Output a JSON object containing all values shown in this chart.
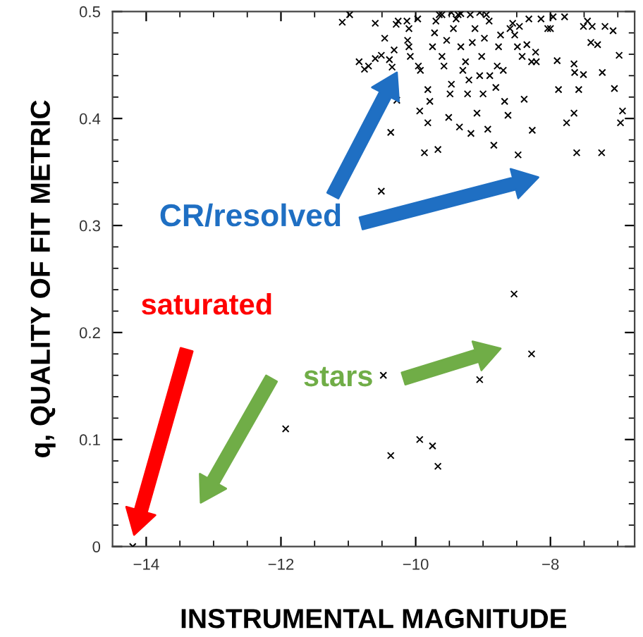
{
  "chart_data": {
    "type": "scatter",
    "xlabel": "INSTRUMENTAL MAGNITUDE",
    "ylabel": "q, QUALITY OF FIT METRIC",
    "annotations": [
      "CR/resolved",
      "saturated",
      "stars"
    ],
    "xlim": [
      -14.5,
      -6.75
    ],
    "ylim": [
      0,
      0.5
    ],
    "xticks": [
      {
        "value": -14,
        "label": "−14"
      },
      {
        "value": -13.5,
        "label": null
      },
      {
        "value": -13,
        "label": null
      },
      {
        "value": -12.5,
        "label": null
      },
      {
        "value": -12,
        "label": "−12"
      },
      {
        "value": -11.5,
        "label": null
      },
      {
        "value": -11,
        "label": null
      },
      {
        "value": -10.5,
        "label": null
      },
      {
        "value": -10,
        "label": "−10"
      },
      {
        "value": -9.5,
        "label": null
      },
      {
        "value": -9,
        "label": null
      },
      {
        "value": -8.5,
        "label": null
      },
      {
        "value": -8,
        "label": "−8"
      },
      {
        "value": -7.5,
        "label": null
      },
      {
        "value": -7,
        "label": null
      }
    ],
    "yticks": [
      0,
      {
        "value": 0.02,
        "label": null
      },
      {
        "value": 0.04,
        "label": null
      },
      {
        "value": 0.06,
        "label": null
      },
      {
        "value": 0.08,
        "label": null
      },
      0.1,
      {
        "value": 0.12,
        "label": null
      },
      {
        "value": 0.14,
        "label": null
      },
      {
        "value": 0.16,
        "label": null
      },
      {
        "value": 0.18,
        "label": null
      },
      0.2,
      {
        "value": 0.22,
        "label": null
      },
      {
        "value": 0.24,
        "label": null
      },
      {
        "value": 0.26,
        "label": null
      },
      {
        "value": 0.28,
        "label": null
      },
      0.3,
      {
        "value": 0.32,
        "label": null
      },
      {
        "value": 0.34,
        "label": null
      },
      {
        "value": 0.36,
        "label": null
      },
      {
        "value": 0.38,
        "label": null
      },
      0.4,
      {
        "value": 0.42,
        "label": null
      },
      {
        "value": 0.44,
        "label": null
      },
      {
        "value": 0.46,
        "label": null
      },
      {
        "value": 0.48,
        "label": null
      },
      0.5
    ],
    "grid": false,
    "marker": "cross",
    "series": [
      {
        "color": "#000000",
        "x": [
          -8.54,
          -8.28,
          -9.05,
          -10.48,
          -11.93,
          -10.37,
          -9.94,
          -9.75,
          -9.67,
          -14.2,
          -11.09,
          -10.98,
          -10.6,
          -10.84,
          -10.76,
          -10.7,
          -10.6,
          -10.51,
          -10.39,
          -10.32,
          -10.35,
          -10.46,
          -10.29,
          -10.26,
          -10.13,
          -10.1,
          -10.12,
          -10.1,
          -10.08,
          -10.28,
          -10.37,
          -10.51,
          -9.97,
          -9.96,
          -9.93,
          -9.94,
          -9.87,
          -9.82,
          -9.82,
          -9.79,
          -9.75,
          -9.72,
          -9.7,
          -9.67,
          -9.65,
          -9.61,
          -9.58,
          -9.54,
          -9.51,
          -9.49,
          -9.47,
          -9.44,
          -9.4,
          -9.37,
          -9.35,
          -9.33,
          -9.3,
          -9.26,
          -9.23,
          -9.21,
          -9.18,
          -9.16,
          -9.12,
          -9.09,
          -9.05,
          -9.02,
          -9.0,
          -8.98,
          -8.95,
          -8.93,
          -8.9,
          -8.84,
          -8.81,
          -8.79,
          -8.77,
          -8.74,
          -8.7,
          -8.68,
          -8.63,
          -8.6,
          -8.56,
          -8.53,
          -8.49,
          -8.48,
          -8.46,
          -8.42,
          -8.39,
          -8.35,
          -8.32,
          -8.28,
          -8.27,
          -8.22,
          -8.21,
          -8.14,
          -8.04,
          -8.0,
          -7.96,
          -7.9,
          -7.88,
          -7.79,
          -7.76,
          -7.65,
          -7.64,
          -7.65,
          -7.61,
          -7.58,
          -7.51,
          -7.45,
          -7.4,
          -7.38,
          -7.3,
          -7.24,
          -7.23,
          -7.19,
          -7.07,
          -7.05,
          -6.98,
          -6.96,
          -6.93,
          -7.51,
          -9.47,
          -9.33,
          -9.19,
          -9.05,
          -9.61,
          -8.91
        ],
        "values": [
          0.236,
          0.18,
          0.156,
          0.16,
          0.11,
          0.085,
          0.1,
          0.094,
          0.075,
          0.0,
          0.49,
          0.497,
          0.489,
          0.453,
          0.446,
          0.449,
          0.456,
          0.459,
          0.455,
          0.464,
          0.448,
          0.475,
          0.488,
          0.491,
          0.491,
          0.484,
          0.473,
          0.467,
          0.458,
          0.417,
          0.387,
          0.332,
          0.493,
          0.449,
          0.445,
          0.407,
          0.368,
          0.396,
          0.427,
          0.416,
          0.467,
          0.48,
          0.491,
          0.371,
          0.497,
          0.458,
          0.449,
          0.473,
          0.401,
          0.423,
          0.432,
          0.484,
          0.493,
          0.497,
          0.392,
          0.467,
          0.445,
          0.453,
          0.423,
          0.436,
          0.386,
          0.471,
          0.484,
          0.405,
          0.44,
          0.458,
          0.423,
          0.475,
          0.497,
          0.39,
          0.44,
          0.375,
          0.429,
          0.449,
          0.467,
          0.478,
          0.445,
          0.416,
          0.403,
          0.484,
          0.489,
          0.478,
          0.467,
          0.366,
          0.486,
          0.458,
          0.418,
          0.469,
          0.493,
          0.453,
          0.389,
          0.462,
          0.453,
          0.493,
          0.484,
          0.484,
          0.495,
          0.454,
          0.427,
          0.495,
          0.396,
          0.451,
          0.443,
          0.405,
          0.368,
          0.427,
          0.486,
          0.491,
          0.471,
          0.486,
          0.469,
          0.368,
          0.443,
          0.486,
          0.482,
          0.428,
          0.459,
          0.396,
          0.407,
          0.441,
          0.499,
          0.498,
          0.497,
          0.499,
          0.497,
          0.491
        ]
      }
    ]
  }
}
